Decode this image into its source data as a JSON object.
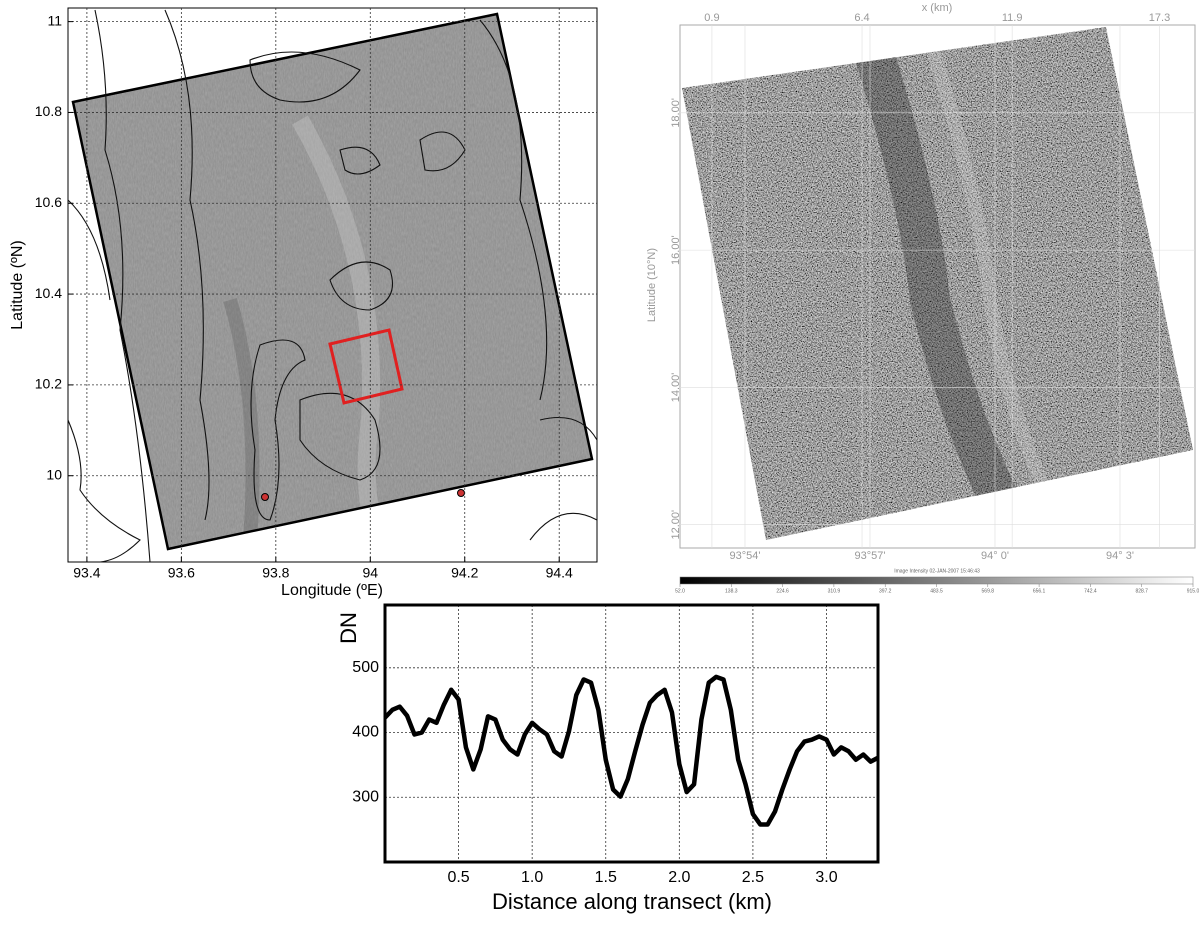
{
  "chart_data": [
    {
      "type": "map",
      "xlabel": "Longitude (ºE)",
      "ylabel": "Latitude (ºN)",
      "xlim": [
        93.36,
        94.48
      ],
      "ylim": [
        9.81,
        11.03
      ],
      "xticks": [
        93.4,
        93.6,
        93.8,
        94,
        94.2,
        94.4
      ],
      "yticks": [
        10,
        10.2,
        10.4,
        10.6,
        10.8,
        11
      ],
      "grid": true
    },
    {
      "type": "image",
      "x2label": "x (km)",
      "ylabel": "Latitude (10°N)",
      "x2lim": [
        -0.27,
        18.6
      ],
      "x2ticks": [
        0.9,
        6.4,
        11.9,
        17.3
      ],
      "xlim": [
        93.874,
        94.08
      ],
      "xticks": [
        {
          "value": 93.9,
          "label": "93°54'"
        },
        {
          "value": 93.95,
          "label": "93°57'"
        },
        {
          "value": 94.0,
          "label": "94° 0'"
        },
        {
          "value": 94.05,
          "label": "94° 3'"
        }
      ],
      "ylim": [
        11.66,
        19.28
      ],
      "yticks": [
        {
          "value": 12,
          "label": "12.00'"
        },
        {
          "value": 14,
          "label": "14.00'"
        },
        {
          "value": 16,
          "label": "16.00'"
        },
        {
          "value": 18,
          "label": "18.00'"
        }
      ],
      "colorbar": {
        "title": "Image Intensity 02-JAN-2007 15:46:43",
        "lim": [
          52,
          915
        ],
        "ticks": [
          {
            "value": 52,
            "label": "52.0"
          },
          {
            "value": 138.3,
            "label": "138.3"
          },
          {
            "value": 224.6,
            "label": "224.6"
          },
          {
            "value": 310.9,
            "label": "310.9"
          },
          {
            "value": 397.2,
            "label": "397.2"
          },
          {
            "value": 483.5,
            "label": "483.5"
          },
          {
            "value": 569.8,
            "label": "569.8"
          },
          {
            "value": 656.1,
            "label": "656.1"
          },
          {
            "value": 742.4,
            "label": "742.4"
          },
          {
            "value": 828.7,
            "label": "828.7"
          },
          {
            "value": 915,
            "label": "915.0"
          }
        ]
      }
    },
    {
      "type": "line",
      "xlabel": "Distance along transect (km)",
      "ylabel": "DN",
      "xlim": [
        0,
        3.35
      ],
      "ylim": [
        200,
        597
      ],
      "xticks": [
        0.5,
        {
          "value": 1,
          "label": "1.0"
        },
        1.5,
        {
          "value": 2,
          "label": "2.0"
        },
        2.5,
        {
          "value": 3,
          "label": "3.0"
        }
      ],
      "yticks": [
        300,
        400,
        500
      ],
      "grid": true,
      "color": "#000000",
      "x": [
        0,
        0.05,
        0.1,
        0.15,
        0.2,
        0.25,
        0.3,
        0.35,
        0.4,
        0.45,
        0.5,
        0.55,
        0.6,
        0.65,
        0.7,
        0.75,
        0.8,
        0.85,
        0.9,
        0.95,
        1.0,
        1.05,
        1.1,
        1.15,
        1.2,
        1.25,
        1.3,
        1.35,
        1.4,
        1.45,
        1.5,
        1.55,
        1.6,
        1.65,
        1.7,
        1.75,
        1.8,
        1.85,
        1.9,
        1.95,
        2.0,
        2.05,
        2.1,
        2.15,
        2.2,
        2.25,
        2.3,
        2.35,
        2.4,
        2.45,
        2.5,
        2.55,
        2.6,
        2.65,
        2.7,
        2.75,
        2.8,
        2.85,
        2.9,
        2.95,
        3.0,
        3.05,
        3.1,
        3.15,
        3.2,
        3.25,
        3.3,
        3.35
      ],
      "values": [
        423,
        435,
        440,
        426,
        397,
        400,
        420,
        415,
        443,
        466,
        451,
        377,
        343,
        374,
        425,
        420,
        389,
        374,
        366,
        397,
        415,
        405,
        397,
        371,
        363,
        402,
        458,
        482,
        477,
        435,
        358,
        312,
        301,
        328,
        371,
        412,
        446,
        458,
        466,
        431,
        351,
        308,
        320,
        420,
        477,
        486,
        482,
        435,
        358,
        320,
        274,
        258,
        258,
        278,
        312,
        343,
        371,
        386,
        389,
        394,
        389,
        366,
        377,
        371,
        358,
        366,
        355,
        361
      ]
    }
  ]
}
